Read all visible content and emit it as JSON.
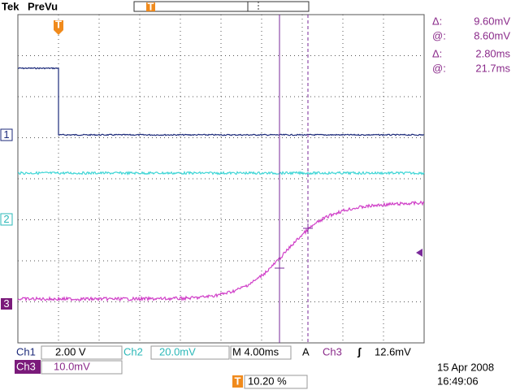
{
  "header": {
    "brand": "Tek",
    "mode": "PreVu"
  },
  "trigger_marker": "T",
  "cursor_readout": [
    {
      "symbol": "Δ:",
      "value": "9.60mV"
    },
    {
      "symbol": "@:",
      "value": "8.60mV"
    },
    {
      "symbol": "Δ:",
      "value": "2.80ms"
    },
    {
      "symbol": "@:",
      "value": "21.7ms"
    }
  ],
  "channel_markers": [
    "1",
    "2",
    "3"
  ],
  "status": {
    "ch1": {
      "label": "Ch1",
      "scale": "2.00 V"
    },
    "ch2": {
      "label": "Ch2",
      "scale": "20.0mV"
    },
    "timebase": "M 4.00ms",
    "trigger": {
      "mode": "A",
      "source": "Ch3",
      "slope": "ʃ",
      "level": "12.6mV"
    },
    "ch3": {
      "label": "Ch3",
      "scale": "10.0mV"
    },
    "trigger_position": "10.20 %",
    "date": "15 Apr 2008",
    "time": "16:49:06"
  }
}
